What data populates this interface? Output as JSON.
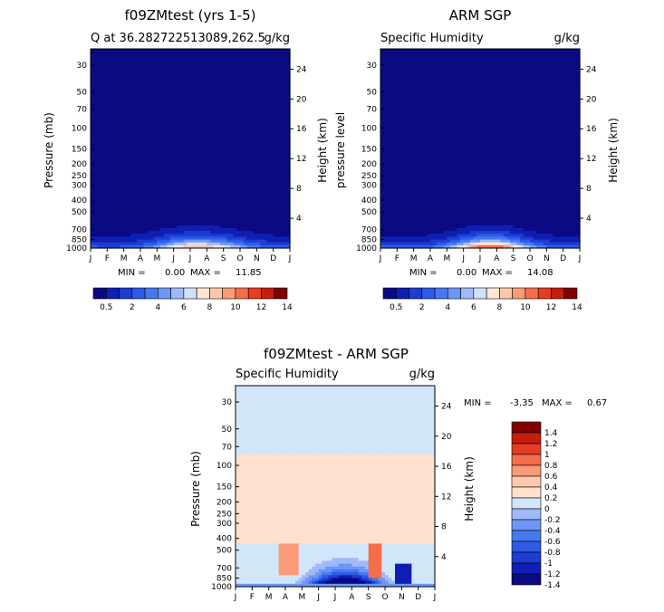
{
  "chart_data": [
    {
      "type": "heatmap",
      "title": "f09ZMtest (yrs 1-5)",
      "left_label": "Q at 36.282722513089,262.5",
      "units": "g/kg",
      "ylabel": "Pressure (mb)",
      "right_ylabel": "Height (km)",
      "x_ticks": [
        "J",
        "F",
        "M",
        "A",
        "M",
        "J",
        "J",
        "A",
        "S",
        "O",
        "N",
        "D",
        "J"
      ],
      "pressure_ticks": [
        "30",
        "50",
        "70",
        "100",
        "150",
        "200",
        "250",
        "300",
        "400",
        "500",
        "700",
        "850",
        "1000"
      ],
      "height_ticks": [
        "24",
        "20",
        "16",
        "12",
        "8",
        "4"
      ],
      "min_label": "MIN =",
      "min_value": "0.00",
      "max_label": "MAX =",
      "max_value": "11.85",
      "max_q": 11.85,
      "colorbar_labels": [
        "0.5",
        "2",
        "4",
        "6",
        "8",
        "10",
        "12",
        "14"
      ]
    },
    {
      "type": "heatmap",
      "title": "ARM SGP",
      "left_label": "Specific Humidity",
      "units": "g/kg",
      "ylabel": "pressure level",
      "right_ylabel": "Height (km)",
      "x_ticks": [
        "J",
        "F",
        "M",
        "A",
        "M",
        "J",
        "J",
        "A",
        "S",
        "O",
        "N",
        "D",
        "J"
      ],
      "pressure_ticks": [
        "30",
        "50",
        "70",
        "100",
        "150",
        "200",
        "250",
        "300",
        "400",
        "500",
        "700",
        "850",
        "1000"
      ],
      "height_ticks": [
        "24",
        "20",
        "16",
        "12",
        "8",
        "4"
      ],
      "min_label": "MIN =",
      "min_value": "0.00",
      "max_label": "MAX =",
      "max_value": "14.08",
      "max_q": 14.08,
      "colorbar_labels": [
        "0.5",
        "2",
        "4",
        "6",
        "8",
        "10",
        "12",
        "14"
      ]
    },
    {
      "type": "heatmap",
      "title": "f09ZMtest - ARM SGP",
      "left_label": "Specific Humidity",
      "units": "g/kg",
      "ylabel": "Pressure (mb)",
      "right_ylabel": "Height (km)",
      "x_ticks": [
        "J",
        "F",
        "M",
        "A",
        "M",
        "J",
        "J",
        "A",
        "S",
        "O",
        "N",
        "D",
        "J"
      ],
      "pressure_ticks": [
        "30",
        "50",
        "70",
        "100",
        "150",
        "200",
        "250",
        "300",
        "400",
        "500",
        "700",
        "850",
        "1000"
      ],
      "height_ticks": [
        "24",
        "20",
        "16",
        "12",
        "8",
        "4"
      ],
      "min_label": "MIN =",
      "min_value": "-3.35",
      "max_label": "MAX =",
      "max_value": "0.67",
      "diff_min": -3.35,
      "diff_max": 0.67,
      "colorbar_labels": [
        "1.4",
        "1.2",
        "1",
        "0.8",
        "0.6",
        "0.4",
        "0.2",
        "0",
        "-0.2",
        "-0.4",
        "-0.6",
        "-0.8",
        "-1",
        "-1.2",
        "-1.4"
      ]
    }
  ],
  "colors": {
    "seq": [
      "#0a0a82",
      "#0f1eb4",
      "#1e3cd2",
      "#2d5ae6",
      "#4678f0",
      "#6e96f5",
      "#a0b9f8",
      "#d2e1fa",
      "#ffe6d2",
      "#ffc8aa",
      "#fa9b78",
      "#f56e4b",
      "#e63c23",
      "#c31e0f",
      "#820000"
    ],
    "div": [
      "#0a0a82",
      "#0f1eb4",
      "#1e3cd2",
      "#2d5ae6",
      "#4678f0",
      "#6e96f5",
      "#a0b9f8",
      "#d2e6fa",
      "#fde1cc",
      "#ffc8aa",
      "#fa9b78",
      "#f56e4b",
      "#e63c23",
      "#c31e0f",
      "#820000"
    ]
  }
}
